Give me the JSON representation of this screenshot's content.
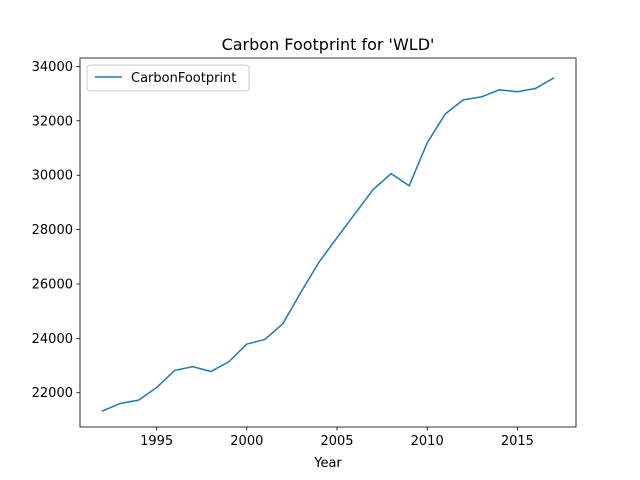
{
  "chart_data": {
    "type": "line",
    "title": "Carbon Footprint for 'WLD'",
    "xlabel": "Year",
    "ylabel": "",
    "xlim": [
      1990.75,
      2018.25
    ],
    "ylim": [
      20740,
      34310
    ],
    "xticks": [
      1995,
      2000,
      2005,
      2010,
      2015
    ],
    "yticks": [
      22000,
      24000,
      26000,
      28000,
      30000,
      32000,
      34000
    ],
    "grid": false,
    "legend_position": "upper-left",
    "series": [
      {
        "name": "CarbonFootprint",
        "color": "#1f77b4",
        "x": [
          1992,
          1993,
          1994,
          1995,
          1996,
          1997,
          1998,
          1999,
          2000,
          2001,
          2002,
          2003,
          2004,
          2005,
          2006,
          2007,
          2008,
          2009,
          2010,
          2011,
          2012,
          2013,
          2014,
          2015,
          2016,
          2017
        ],
        "values": [
          21330,
          21610,
          21730,
          22190,
          22820,
          22960,
          22780,
          23140,
          23790,
          23960,
          24540,
          25700,
          26800,
          27700,
          28590,
          29470,
          30060,
          29610,
          31190,
          32250,
          32770,
          32880,
          33140,
          33070,
          33190,
          33570
        ]
      }
    ]
  }
}
